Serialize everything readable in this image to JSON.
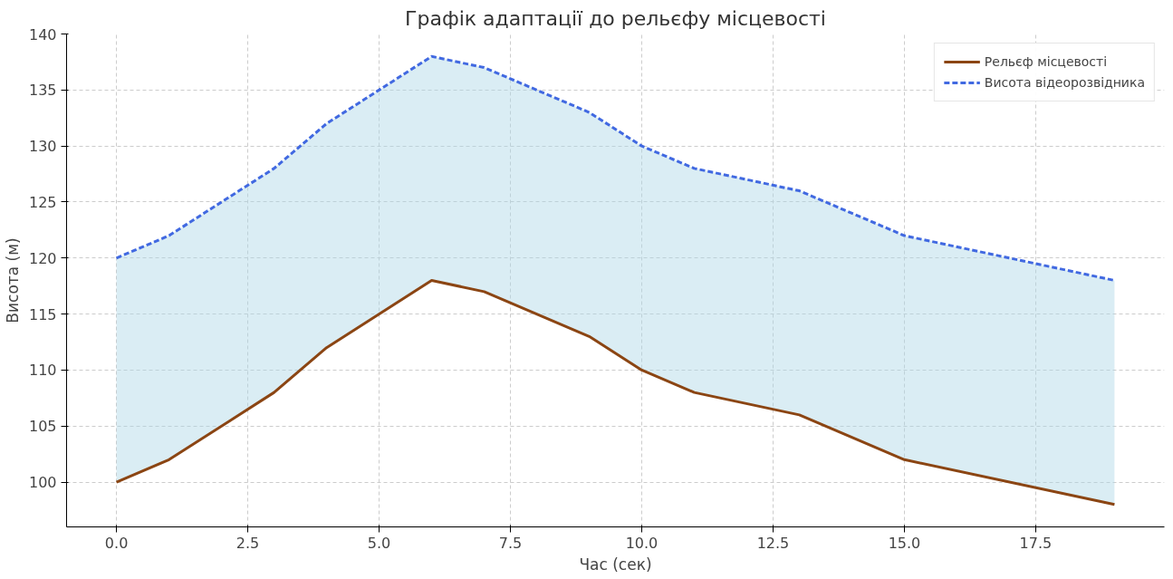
{
  "chart_data": {
    "type": "line",
    "title": "Графік адаптації до рельєфу місцевості",
    "xlabel": "Час (сек)",
    "ylabel": "Висота (м)",
    "x": [
      0,
      1,
      3,
      4,
      6,
      7,
      9,
      10,
      11,
      13,
      15,
      19
    ],
    "series": [
      {
        "name": "Рельєф місцевості",
        "color": "#8b4513",
        "line_style": "solid",
        "values": [
          100,
          102,
          108,
          112,
          118,
          117,
          113,
          110,
          108,
          106,
          102,
          98
        ]
      },
      {
        "name": "Висота відеорозвідника",
        "color": "#4169e1",
        "line_style": "dashed",
        "values": [
          120,
          122,
          128,
          132,
          138,
          137,
          133,
          130,
          128,
          126,
          122,
          118
        ],
        "lower": [
          100,
          102,
          108,
          112,
          118,
          117,
          113,
          110,
          108,
          106,
          102,
          98
        ],
        "upper": [
          120,
          122,
          128,
          132,
          138,
          137,
          133,
          130,
          128,
          126,
          122,
          118
        ]
      }
    ],
    "xlim": [
      -0.95,
      19.95
    ],
    "ylim": [
      96,
      140
    ],
    "xticks": [
      {
        "value": 0,
        "label": "0.0"
      },
      {
        "value": 2.5,
        "label": "2.5"
      },
      {
        "value": 5,
        "label": "5.0"
      },
      {
        "value": 7.5,
        "label": "7.5"
      },
      {
        "value": 10,
        "label": "10.0"
      },
      {
        "value": 12.5,
        "label": "12.5"
      },
      {
        "value": 15,
        "label": "15.0"
      },
      {
        "value": 17.5,
        "label": "17.5"
      }
    ],
    "yticks": [
      100,
      105,
      110,
      115,
      120,
      125,
      130,
      135,
      140
    ],
    "grid": true,
    "legend": "top right",
    "marker": "none"
  }
}
